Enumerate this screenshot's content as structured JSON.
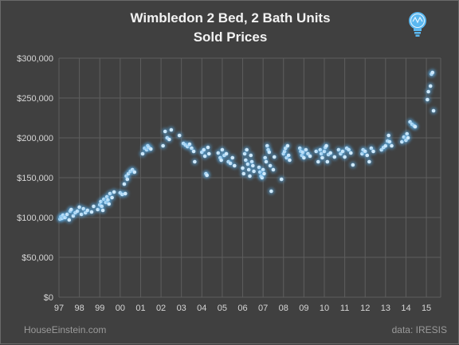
{
  "chart_data": {
    "type": "scatter",
    "title": "Wimbledon 2 Bed, 2 Bath Units",
    "subtitle": "Sold Prices",
    "xlabel": "",
    "ylabel": "",
    "x_ticks": [
      "97",
      "98",
      "99",
      "00",
      "01",
      "02",
      "03",
      "04",
      "05",
      "06",
      "07",
      "08",
      "09",
      "10",
      "11",
      "12",
      "13",
      "14",
      "15"
    ],
    "y_ticks": [
      "$0",
      "$50,000",
      "$100,000",
      "$150,000",
      "$200,000",
      "$250,000",
      "$300,000"
    ],
    "xlim": [
      1997.0,
      2015.7
    ],
    "ylim": [
      0,
      300000
    ],
    "grid": true,
    "legend": "none",
    "marker_color": "#5aaee8",
    "series": [
      {
        "points": [
          [
            1997.05,
            98000
          ],
          [
            1997.1,
            101000
          ],
          [
            1997.15,
            99000
          ],
          [
            1997.2,
            103000
          ],
          [
            1997.3,
            100000
          ],
          [
            1997.4,
            104000
          ],
          [
            1997.5,
            97000
          ],
          [
            1997.55,
            108000
          ],
          [
            1997.6,
            110000
          ],
          [
            1997.7,
            102000
          ],
          [
            1997.8,
            106000
          ],
          [
            1997.9,
            108000
          ],
          [
            1998.0,
            113000
          ],
          [
            1998.1,
            104000
          ],
          [
            1998.2,
            111000
          ],
          [
            1998.3,
            106000
          ],
          [
            1998.4,
            109000
          ],
          [
            1998.6,
            107000
          ],
          [
            1998.7,
            114000
          ],
          [
            1998.9,
            110000
          ],
          [
            1999.0,
            116000
          ],
          [
            1999.05,
            120000
          ],
          [
            1999.1,
            114000
          ],
          [
            1999.15,
            109000
          ],
          [
            1999.2,
            123000
          ],
          [
            1999.3,
            119000
          ],
          [
            1999.35,
            126000
          ],
          [
            1999.4,
            122000
          ],
          [
            1999.45,
            117000
          ],
          [
            1999.5,
            130000
          ],
          [
            1999.6,
            125000
          ],
          [
            1999.7,
            132000
          ],
          [
            2000.0,
            131000
          ],
          [
            2000.1,
            129000
          ],
          [
            2000.2,
            142000
          ],
          [
            2000.25,
            130000
          ],
          [
            2000.3,
            152000
          ],
          [
            2000.35,
            148000
          ],
          [
            2000.4,
            155000
          ],
          [
            2000.5,
            158000
          ],
          [
            2000.6,
            160000
          ],
          [
            2000.7,
            157000
          ],
          [
            2001.1,
            180000
          ],
          [
            2001.2,
            187000
          ],
          [
            2001.3,
            185000
          ],
          [
            2001.35,
            190000
          ],
          [
            2001.4,
            188000
          ],
          [
            2001.5,
            186000
          ],
          [
            2002.1,
            190000
          ],
          [
            2002.2,
            208000
          ],
          [
            2002.3,
            200000
          ],
          [
            2002.4,
            198000
          ],
          [
            2002.5,
            210000
          ],
          [
            2002.9,
            203000
          ],
          [
            2003.1,
            193000
          ],
          [
            2003.2,
            191000
          ],
          [
            2003.3,
            189000
          ],
          [
            2003.4,
            192000
          ],
          [
            2003.5,
            187000
          ],
          [
            2003.6,
            183000
          ],
          [
            2003.65,
            170000
          ],
          [
            2004.0,
            182000
          ],
          [
            2004.1,
            185000
          ],
          [
            2004.15,
            177000
          ],
          [
            2004.2,
            155000
          ],
          [
            2004.25,
            153000
          ],
          [
            2004.3,
            188000
          ],
          [
            2004.35,
            180000
          ],
          [
            2004.8,
            181000
          ],
          [
            2004.9,
            175000
          ],
          [
            2004.95,
            172000
          ],
          [
            2005.0,
            185000
          ],
          [
            2005.1,
            178000
          ],
          [
            2005.2,
            180000
          ],
          [
            2005.3,
            170000
          ],
          [
            2005.4,
            168000
          ],
          [
            2005.5,
            175000
          ],
          [
            2005.6,
            165000
          ],
          [
            2006.0,
            162000
          ],
          [
            2006.05,
            155000
          ],
          [
            2006.1,
            180000
          ],
          [
            2006.15,
            172000
          ],
          [
            2006.2,
            185000
          ],
          [
            2006.25,
            167000
          ],
          [
            2006.3,
            160000
          ],
          [
            2006.35,
            152000
          ],
          [
            2006.4,
            178000
          ],
          [
            2006.45,
            170000
          ],
          [
            2006.5,
            165000
          ],
          [
            2006.55,
            158000
          ],
          [
            2006.8,
            163000
          ],
          [
            2006.85,
            157000
          ],
          [
            2006.9,
            152000
          ],
          [
            2006.95,
            150000
          ],
          [
            2007.0,
            160000
          ],
          [
            2007.05,
            155000
          ],
          [
            2007.1,
            175000
          ],
          [
            2007.15,
            170000
          ],
          [
            2007.2,
            190000
          ],
          [
            2007.25,
            185000
          ],
          [
            2007.3,
            182000
          ],
          [
            2007.35,
            165000
          ],
          [
            2007.4,
            133000
          ],
          [
            2007.5,
            160000
          ],
          [
            2007.55,
            176000
          ],
          [
            2007.9,
            148000
          ],
          [
            2008.0,
            180000
          ],
          [
            2008.05,
            183000
          ],
          [
            2008.1,
            187000
          ],
          [
            2008.15,
            175000
          ],
          [
            2008.2,
            190000
          ],
          [
            2008.25,
            178000
          ],
          [
            2008.3,
            172000
          ],
          [
            2008.8,
            187000
          ],
          [
            2008.85,
            183000
          ],
          [
            2008.9,
            178000
          ],
          [
            2008.95,
            182000
          ],
          [
            2009.0,
            175000
          ],
          [
            2009.1,
            185000
          ],
          [
            2009.2,
            180000
          ],
          [
            2009.3,
            177000
          ],
          [
            2009.6,
            183000
          ],
          [
            2009.7,
            170000
          ],
          [
            2009.8,
            185000
          ],
          [
            2009.85,
            180000
          ],
          [
            2009.9,
            175000
          ],
          [
            2010.0,
            183000
          ],
          [
            2010.05,
            188000
          ],
          [
            2010.1,
            190000
          ],
          [
            2010.15,
            170000
          ],
          [
            2010.2,
            179000
          ],
          [
            2010.3,
            181000
          ],
          [
            2010.5,
            176000
          ],
          [
            2010.7,
            185000
          ],
          [
            2010.8,
            180000
          ],
          [
            2010.9,
            183000
          ],
          [
            2011.0,
            176000
          ],
          [
            2011.1,
            187000
          ],
          [
            2011.2,
            185000
          ],
          [
            2011.3,
            181000
          ],
          [
            2011.4,
            166000
          ],
          [
            2011.85,
            180000
          ],
          [
            2011.9,
            185000
          ],
          [
            2012.0,
            183000
          ],
          [
            2012.1,
            178000
          ],
          [
            2012.2,
            170000
          ],
          [
            2012.3,
            187000
          ],
          [
            2012.4,
            183000
          ],
          [
            2012.8,
            185000
          ],
          [
            2012.9,
            188000
          ],
          [
            2013.0,
            190000
          ],
          [
            2013.1,
            196000
          ],
          [
            2013.15,
            203000
          ],
          [
            2013.2,
            195000
          ],
          [
            2013.3,
            190000
          ],
          [
            2013.8,
            195000
          ],
          [
            2013.9,
            201000
          ],
          [
            2014.0,
            197000
          ],
          [
            2014.05,
            205000
          ],
          [
            2014.1,
            200000
          ],
          [
            2014.2,
            220000
          ],
          [
            2014.3,
            217000
          ],
          [
            2014.4,
            215000
          ],
          [
            2014.45,
            214000
          ],
          [
            2015.05,
            248000
          ],
          [
            2015.1,
            258000
          ],
          [
            2015.2,
            265000
          ],
          [
            2015.25,
            280000
          ],
          [
            2015.3,
            282000
          ],
          [
            2015.35,
            234000
          ]
        ]
      }
    ]
  },
  "footer": {
    "left": "HouseEinstein.com",
    "right": "data:  IRESIS"
  },
  "logo_icon": "lightbulb-icon"
}
